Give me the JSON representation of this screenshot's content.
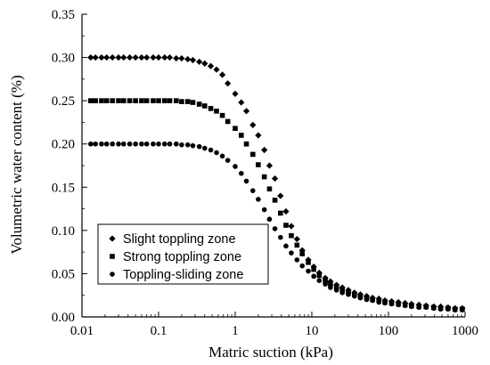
{
  "chart_data": {
    "type": "scatter",
    "title": "",
    "xlabel": "Matric suction (kPa)",
    "ylabel": "Volumetric water content (%)",
    "xscale": "log",
    "xlim": [
      0.01,
      1000
    ],
    "ylim": [
      0.0,
      0.35
    ],
    "x_ticks": [
      0.01,
      0.1,
      1,
      10,
      100,
      1000
    ],
    "x_tick_labels": [
      "0.01",
      "0.1",
      "1",
      "10",
      "100",
      "1000"
    ],
    "y_ticks": [
      0.0,
      0.05,
      0.1,
      0.15,
      0.2,
      0.25,
      0.3,
      0.35
    ],
    "y_tick_labels": [
      "0.00",
      "0.05",
      "0.10",
      "0.15",
      "0.20",
      "0.25",
      "0.30",
      "0.35"
    ],
    "grid": false,
    "legend_position": "lower-left",
    "series": [
      {
        "name": "Slight toppling zone",
        "marker": "diamond",
        "color": "#000000",
        "points": [
          [
            0.013,
            0.3
          ],
          [
            0.015,
            0.3
          ],
          [
            0.018,
            0.3
          ],
          [
            0.021,
            0.3
          ],
          [
            0.025,
            0.3
          ],
          [
            0.03,
            0.3
          ],
          [
            0.035,
            0.3
          ],
          [
            0.042,
            0.3
          ],
          [
            0.05,
            0.3
          ],
          [
            0.06,
            0.3
          ],
          [
            0.07,
            0.3
          ],
          [
            0.085,
            0.3
          ],
          [
            0.1,
            0.3
          ],
          [
            0.12,
            0.3
          ],
          [
            0.14,
            0.3
          ],
          [
            0.17,
            0.299
          ],
          [
            0.2,
            0.299
          ],
          [
            0.24,
            0.298
          ],
          [
            0.28,
            0.297
          ],
          [
            0.34,
            0.295
          ],
          [
            0.4,
            0.293
          ],
          [
            0.48,
            0.29
          ],
          [
            0.57,
            0.286
          ],
          [
            0.68,
            0.28
          ],
          [
            0.8,
            0.27
          ],
          [
            1.0,
            0.258
          ],
          [
            1.2,
            0.248
          ],
          [
            1.4,
            0.238
          ],
          [
            1.7,
            0.222
          ],
          [
            2.0,
            0.21
          ],
          [
            2.4,
            0.193
          ],
          [
            2.8,
            0.175
          ],
          [
            3.3,
            0.16
          ],
          [
            3.9,
            0.14
          ],
          [
            4.6,
            0.122
          ],
          [
            5.4,
            0.105
          ],
          [
            6.4,
            0.09
          ],
          [
            7.5,
            0.077
          ],
          [
            9.0,
            0.066
          ],
          [
            10.6,
            0.058
          ],
          [
            12.5,
            0.051
          ],
          [
            15,
            0.045
          ],
          [
            17.5,
            0.041
          ],
          [
            21,
            0.037
          ],
          [
            25,
            0.034
          ],
          [
            30,
            0.031
          ],
          [
            36,
            0.028
          ],
          [
            43,
            0.026
          ],
          [
            52,
            0.024
          ],
          [
            62,
            0.022
          ],
          [
            75,
            0.021
          ],
          [
            90,
            0.019
          ],
          [
            110,
            0.018
          ],
          [
            135,
            0.017
          ],
          [
            165,
            0.016
          ],
          [
            200,
            0.015
          ],
          [
            250,
            0.014
          ],
          [
            310,
            0.013
          ],
          [
            390,
            0.012
          ],
          [
            480,
            0.012
          ],
          [
            600,
            0.011
          ],
          [
            740,
            0.01
          ],
          [
            920,
            0.01
          ]
        ]
      },
      {
        "name": "Strong toppling zone",
        "marker": "square",
        "color": "#000000",
        "points": [
          [
            0.013,
            0.25
          ],
          [
            0.015,
            0.25
          ],
          [
            0.018,
            0.25
          ],
          [
            0.021,
            0.25
          ],
          [
            0.025,
            0.25
          ],
          [
            0.03,
            0.25
          ],
          [
            0.035,
            0.25
          ],
          [
            0.042,
            0.25
          ],
          [
            0.05,
            0.25
          ],
          [
            0.06,
            0.25
          ],
          [
            0.07,
            0.25
          ],
          [
            0.085,
            0.25
          ],
          [
            0.1,
            0.25
          ],
          [
            0.12,
            0.25
          ],
          [
            0.14,
            0.25
          ],
          [
            0.17,
            0.25
          ],
          [
            0.2,
            0.249
          ],
          [
            0.24,
            0.249
          ],
          [
            0.28,
            0.248
          ],
          [
            0.34,
            0.246
          ],
          [
            0.4,
            0.244
          ],
          [
            0.48,
            0.241
          ],
          [
            0.57,
            0.238
          ],
          [
            0.68,
            0.233
          ],
          [
            0.8,
            0.226
          ],
          [
            1.0,
            0.218
          ],
          [
            1.2,
            0.21
          ],
          [
            1.4,
            0.2
          ],
          [
            1.7,
            0.188
          ],
          [
            2.0,
            0.176
          ],
          [
            2.4,
            0.162
          ],
          [
            2.8,
            0.148
          ],
          [
            3.3,
            0.135
          ],
          [
            3.9,
            0.12
          ],
          [
            4.6,
            0.106
          ],
          [
            5.4,
            0.094
          ],
          [
            6.4,
            0.083
          ],
          [
            7.5,
            0.073
          ],
          [
            9.0,
            0.063
          ],
          [
            10.6,
            0.055
          ],
          [
            12.5,
            0.048
          ],
          [
            15,
            0.042
          ],
          [
            17.5,
            0.038
          ],
          [
            21,
            0.034
          ],
          [
            25,
            0.031
          ],
          [
            30,
            0.028
          ],
          [
            36,
            0.026
          ],
          [
            43,
            0.024
          ],
          [
            52,
            0.022
          ],
          [
            62,
            0.02
          ],
          [
            75,
            0.019
          ],
          [
            90,
            0.017
          ],
          [
            110,
            0.016
          ],
          [
            135,
            0.015
          ],
          [
            165,
            0.014
          ],
          [
            200,
            0.013
          ],
          [
            250,
            0.012
          ],
          [
            310,
            0.012
          ],
          [
            390,
            0.011
          ],
          [
            480,
            0.01
          ],
          [
            600,
            0.01
          ],
          [
            740,
            0.009
          ],
          [
            920,
            0.009
          ]
        ]
      },
      {
        "name": "Toppling-sliding zone",
        "marker": "circle",
        "color": "#000000",
        "points": [
          [
            0.013,
            0.2
          ],
          [
            0.015,
            0.2
          ],
          [
            0.018,
            0.2
          ],
          [
            0.021,
            0.2
          ],
          [
            0.025,
            0.2
          ],
          [
            0.03,
            0.2
          ],
          [
            0.035,
            0.2
          ],
          [
            0.042,
            0.2
          ],
          [
            0.05,
            0.2
          ],
          [
            0.06,
            0.2
          ],
          [
            0.07,
            0.2
          ],
          [
            0.085,
            0.2
          ],
          [
            0.1,
            0.2
          ],
          [
            0.12,
            0.2
          ],
          [
            0.14,
            0.2
          ],
          [
            0.17,
            0.2
          ],
          [
            0.2,
            0.199
          ],
          [
            0.24,
            0.199
          ],
          [
            0.28,
            0.198
          ],
          [
            0.34,
            0.197
          ],
          [
            0.4,
            0.195
          ],
          [
            0.48,
            0.193
          ],
          [
            0.57,
            0.19
          ],
          [
            0.68,
            0.186
          ],
          [
            0.8,
            0.181
          ],
          [
            1.0,
            0.174
          ],
          [
            1.2,
            0.166
          ],
          [
            1.4,
            0.157
          ],
          [
            1.7,
            0.146
          ],
          [
            2.0,
            0.136
          ],
          [
            2.4,
            0.124
          ],
          [
            2.8,
            0.113
          ],
          [
            3.3,
            0.102
          ],
          [
            3.9,
            0.092
          ],
          [
            4.6,
            0.082
          ],
          [
            5.4,
            0.074
          ],
          [
            6.4,
            0.066
          ],
          [
            7.5,
            0.059
          ],
          [
            9.0,
            0.053
          ],
          [
            10.6,
            0.047
          ],
          [
            12.5,
            0.042
          ],
          [
            15,
            0.038
          ],
          [
            17.5,
            0.034
          ],
          [
            21,
            0.031
          ],
          [
            25,
            0.028
          ],
          [
            30,
            0.026
          ],
          [
            36,
            0.024
          ],
          [
            43,
            0.022
          ],
          [
            52,
            0.02
          ],
          [
            62,
            0.019
          ],
          [
            75,
            0.017
          ],
          [
            90,
            0.016
          ],
          [
            110,
            0.015
          ],
          [
            135,
            0.014
          ],
          [
            165,
            0.013
          ],
          [
            200,
            0.012
          ],
          [
            250,
            0.011
          ],
          [
            310,
            0.011
          ],
          [
            390,
            0.01
          ],
          [
            480,
            0.009
          ],
          [
            600,
            0.009
          ],
          [
            740,
            0.008
          ],
          [
            920,
            0.008
          ]
        ]
      }
    ]
  }
}
